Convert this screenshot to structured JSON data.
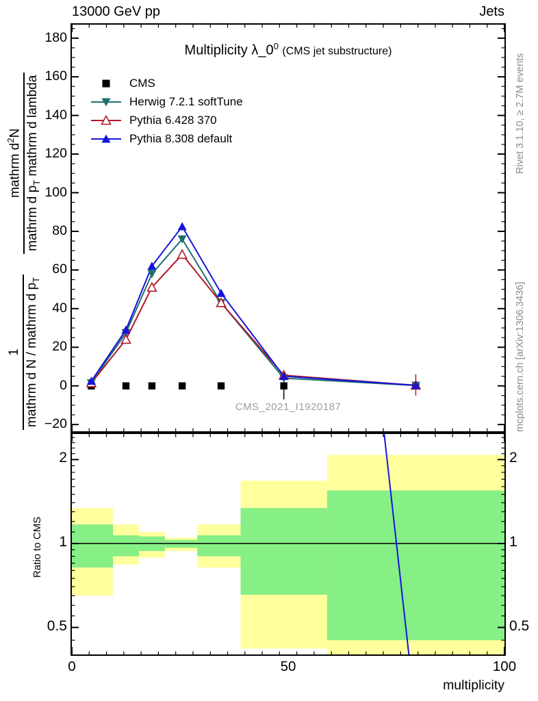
{
  "header": {
    "left": "13000 GeV pp",
    "right": "Jets"
  },
  "title": {
    "main": "Multiplicity λ_0",
    "sup": "0",
    "paren": "(CMS jet substructure)"
  },
  "watermark": "CMS_2021_I1920187",
  "side_notes": {
    "top_right": "Rivet 3.1.10, ≥ 2.7M events",
    "bottom_right": "mcplots.cern.ch [arXiv:1306.3436]"
  },
  "ylabel": {
    "frac1": {
      "num": "1",
      "den_pre": "mathrm d N / mathrm d p",
      "den_sub": "T"
    },
    "frac2": {
      "num_pre": "mathrm d",
      "num_sup": "2",
      "num_post": "N",
      "den_pre": "mathrm d p",
      "den_sub": "T",
      "den_post": " mathrm d lambda"
    }
  },
  "ratio_ylabel": "Ratio to CMS",
  "xlabel": "multiplicity",
  "colors": {
    "frame": "#000000",
    "band_yellow": "#ffff9e",
    "band_green": "#86ef86",
    "watermark": "#9d9d9d",
    "side_note": "#8a8a8a"
  },
  "chart_data": {
    "type": "line",
    "title": "Multiplicity λ_0^0 (CMS jet substructure)",
    "xlabel": "multiplicity",
    "ylabel": "1/(dN/dp_T) d2N/(dp_T dlambda)",
    "x": [
      4.5,
      12.5,
      18.5,
      25.5,
      34.5,
      49,
      79.5
    ],
    "series": [
      {
        "name": "CMS",
        "values": [
          0,
          0,
          0,
          0,
          0,
          0,
          0
        ],
        "color": "#000000",
        "marker": "square",
        "line": false
      },
      {
        "name": "Herwig 7.2.1 softTune",
        "values": [
          1.5,
          27.5,
          58,
          76,
          43,
          4,
          0.2
        ],
        "color": "#1e6e6e",
        "marker": "triangle-down",
        "line": true
      },
      {
        "name": "Pythia 6.428 370",
        "values": [
          1.5,
          24,
          51,
          68,
          43,
          5.5,
          0.3
        ],
        "color": "#b01828",
        "marker": "triangle-up-open",
        "line": true
      },
      {
        "name": "Pythia 8.308 default",
        "values": [
          2.5,
          29,
          62,
          82.5,
          48,
          5,
          0.3
        ],
        "color": "#1414dd",
        "marker": "triangle-up",
        "line": true
      }
    ],
    "error_bars": [
      {
        "x": 49,
        "lo": -7,
        "hi": 7,
        "color": "#000000"
      },
      {
        "x": 79.5,
        "lo": -5,
        "hi": 6,
        "color": "#b01828"
      }
    ],
    "main_axis": {
      "xlim": [
        0,
        100
      ],
      "ylim": [
        -23.5,
        187
      ],
      "xticks": [
        0,
        50,
        100
      ],
      "yticks": [
        -20,
        0,
        20,
        40,
        60,
        80,
        100,
        120,
        140,
        160,
        180
      ],
      "x_minor_step": 4,
      "y_minor_step": 5
    },
    "ratio_axis": {
      "scale": "log",
      "ylim": [
        0.4,
        2.47
      ],
      "yticks": [
        2,
        1,
        0.5
      ],
      "yminor": [
        0.45,
        0.55,
        0.6,
        0.65,
        0.7,
        0.75,
        0.8,
        0.85,
        0.9,
        0.95,
        1.1,
        1.2,
        1.3,
        1.4,
        1.5,
        1.6,
        1.7,
        1.8,
        1.9,
        2.1,
        2.2,
        2.3,
        2.4
      ]
    },
    "ratio_bands": [
      {
        "x0": 0,
        "x1": 9.5,
        "yellow": [
          0.65,
          1.34
        ],
        "green": [
          0.82,
          1.17
        ]
      },
      {
        "x0": 9.5,
        "x1": 15.5,
        "yellow": [
          0.84,
          1.17
        ],
        "green": [
          0.9,
          1.07
        ]
      },
      {
        "x0": 15.5,
        "x1": 21.5,
        "yellow": [
          0.89,
          1.1
        ],
        "green": [
          0.94,
          1.06
        ]
      },
      {
        "x0": 21.5,
        "x1": 29,
        "yellow": [
          0.94,
          1.05
        ],
        "green": [
          0.965,
          1.03
        ]
      },
      {
        "x0": 29,
        "x1": 39,
        "yellow": [
          0.82,
          1.17
        ],
        "green": [
          0.9,
          1.07
        ]
      },
      {
        "x0": 39,
        "x1": 59,
        "yellow": [
          0.42,
          1.68
        ],
        "green": [
          0.655,
          1.34
        ]
      },
      {
        "x0": 59,
        "x1": 100,
        "yellow": [
          0.37,
          2.08
        ],
        "green": [
          0.45,
          1.55
        ]
      }
    ],
    "ratio_unity_line": 1,
    "ratio_diag_line": {
      "color": "#1414dd",
      "x_top": 72.2,
      "x_bottom": 77.9
    }
  }
}
